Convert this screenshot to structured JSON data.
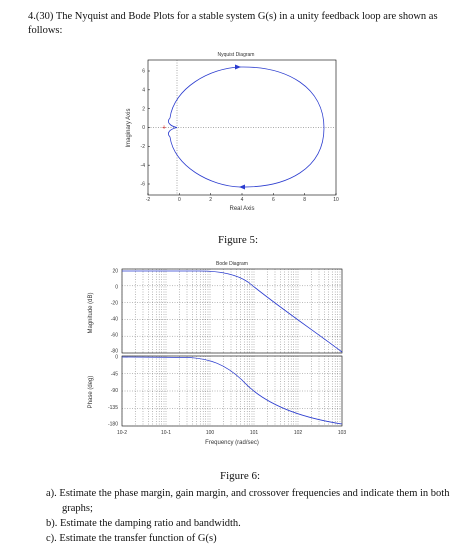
{
  "question": {
    "number": "4.(30)",
    "line1": "The Nyquist and Bode Plots for a stable system G(s) in a unity feedback loop are shown as",
    "line2": "follows:"
  },
  "nyquist": {
    "title": "Nyquist Diagram",
    "xlabel": "Real Axis",
    "ylabel": "Imaginary Axis",
    "xticks": [
      "-2",
      "0",
      "2",
      "4",
      "6",
      "8",
      "10"
    ],
    "yticks": [
      "6",
      "4",
      "2",
      "0",
      "-2",
      "-4",
      "-6"
    ]
  },
  "figure5": "Figure 5:",
  "bode": {
    "title": "Bode Diagram",
    "mag_ylabel": "Magnitude (dB)",
    "phase_ylabel": "Phase (deg)",
    "xlabel": "Frequency (rad/sec)",
    "mag_ticks": [
      "20",
      "0",
      "-20",
      "-40",
      "-60",
      "-80"
    ],
    "phase_ticks": [
      "0",
      "-45",
      "-90",
      "-135",
      "-180"
    ],
    "freq_ticks": [
      "10-2",
      "10-1",
      "100",
      "101",
      "102",
      "103"
    ]
  },
  "figure6": "Figure 6:",
  "tasks": [
    {
      "label": "a).",
      "text": "Estimate the phase margin, gain margin, and crossover frequencies and indicate them in both",
      "cont": "graphs;"
    },
    {
      "label": "b).",
      "text": "Estimate the damping ratio and bandwidth.",
      "cont": ""
    },
    {
      "label": "c).",
      "text": "Estimate the transfer function of G(s)",
      "cont": ""
    }
  ],
  "colors": {
    "curve": "#2b3ccf",
    "axes": "#000000",
    "grid": "#555555",
    "marker": "#d02020"
  }
}
